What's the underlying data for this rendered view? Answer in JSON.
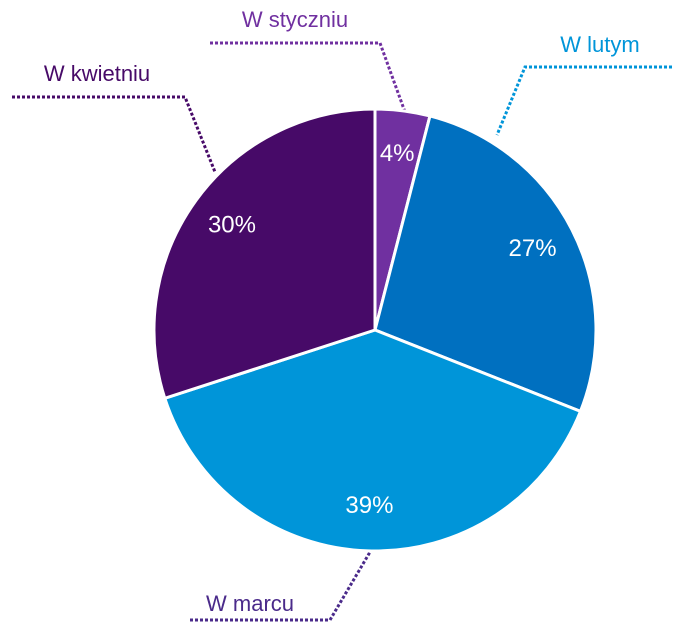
{
  "chart_data": {
    "type": "pie",
    "categories": [
      "W styczniu",
      "W lutym",
      "W marcu",
      "W kwietniu"
    ],
    "values": [
      4,
      27,
      39,
      30
    ],
    "value_labels": [
      "4%",
      "27%",
      "39%",
      "30%"
    ],
    "colors": [
      "#7030a0",
      "#0070c0",
      "#0095d9",
      "#470a68"
    ]
  }
}
